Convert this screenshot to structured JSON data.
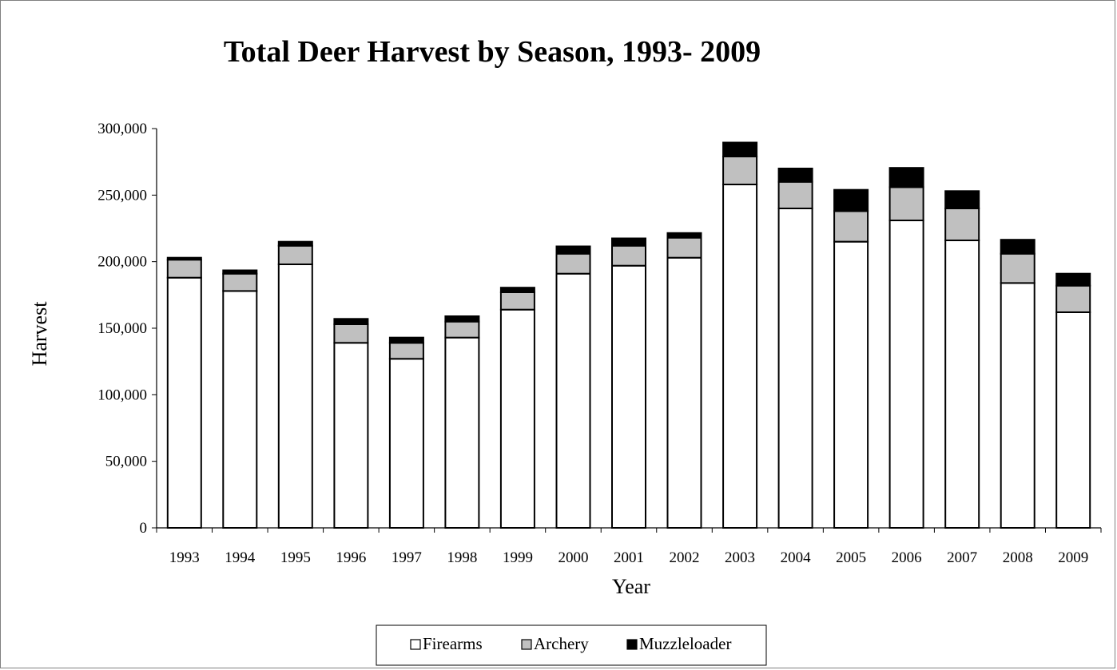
{
  "chart_data": {
    "type": "bar",
    "stacked": true,
    "title": "Total Deer Harvest by Season, 1993- 2009",
    "xlabel": "Year",
    "ylabel": "Harvest",
    "ylim": [
      0,
      300000
    ],
    "yticks": [
      0,
      50000,
      100000,
      150000,
      200000,
      250000,
      300000
    ],
    "ytick_labels": [
      "0",
      "50,000",
      "100,000",
      "150,000",
      "200,000",
      "250,000",
      "300,000"
    ],
    "categories": [
      "1993",
      "1994",
      "1995",
      "1996",
      "1997",
      "1998",
      "1999",
      "2000",
      "2001",
      "2002",
      "2003",
      "2004",
      "2005",
      "2006",
      "2007",
      "2008",
      "2009"
    ],
    "series": [
      {
        "name": "Firearms",
        "color": "#ffffff",
        "values": [
          188000,
          178000,
          198000,
          139000,
          127000,
          143000,
          164000,
          191000,
          197000,
          203000,
          258000,
          240000,
          215000,
          231000,
          216000,
          184000,
          162000
        ]
      },
      {
        "name": "Archery",
        "color": "#c0c0c0",
        "values": [
          13500,
          13000,
          14000,
          14000,
          12000,
          12000,
          13000,
          15000,
          15000,
          15000,
          21000,
          20000,
          23000,
          25000,
          24000,
          22000,
          20000
        ]
      },
      {
        "name": "Muzzleloader",
        "color": "#000000",
        "values": [
          1500,
          2500,
          3000,
          4000,
          4000,
          4000,
          3500,
          5500,
          5500,
          3500,
          10500,
          10000,
          16000,
          14500,
          13000,
          10500,
          9000
        ]
      }
    ],
    "legend_position": "bottom-center",
    "grid": false
  }
}
